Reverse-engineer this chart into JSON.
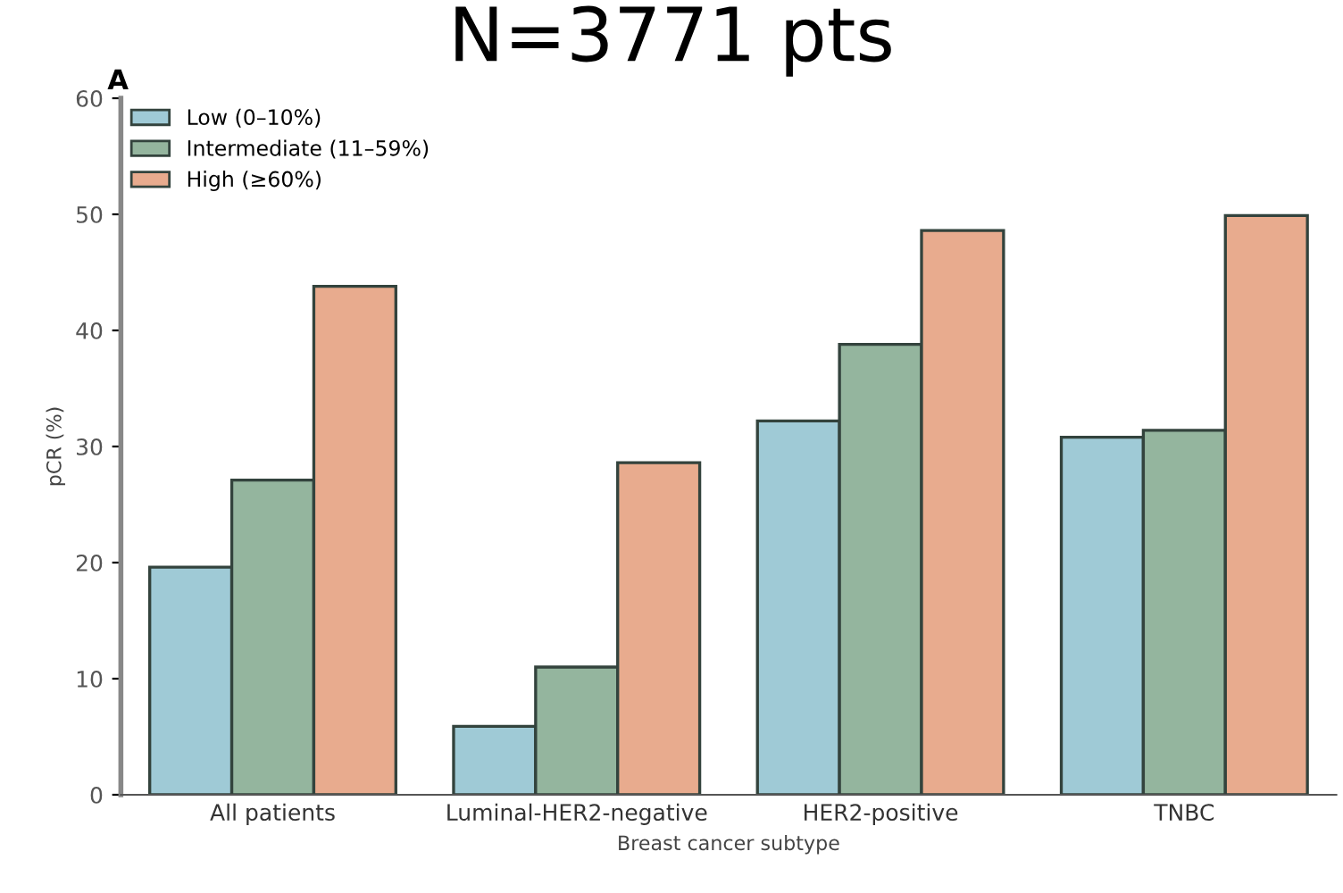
{
  "chart_data": {
    "type": "bar",
    "title": "N=3771 pts",
    "annotations": [
      "A"
    ],
    "xlabel": "Breast cancer subtype",
    "ylabel": "pCR (%)",
    "categories": [
      "All patients",
      "Luminal-HER2-negative",
      "HER2-positive",
      "TNBC"
    ],
    "series": [
      {
        "name": "Low (0–10%)",
        "color": "#9fcad6",
        "values": [
          19.6,
          5.9,
          32.2,
          30.8
        ]
      },
      {
        "name": "Intermediate (11–59%)",
        "color": "#94b59e",
        "values": [
          27.1,
          11.0,
          38.8,
          31.4
        ]
      },
      {
        "name": "High (≥60%)",
        "color": "#e8ab8e",
        "values": [
          43.8,
          28.6,
          48.6,
          49.9
        ]
      }
    ],
    "ylim": [
      0,
      60
    ],
    "yticks": [
      0,
      10,
      20,
      30,
      40,
      50,
      60
    ],
    "grid": false,
    "legend": "top left"
  }
}
